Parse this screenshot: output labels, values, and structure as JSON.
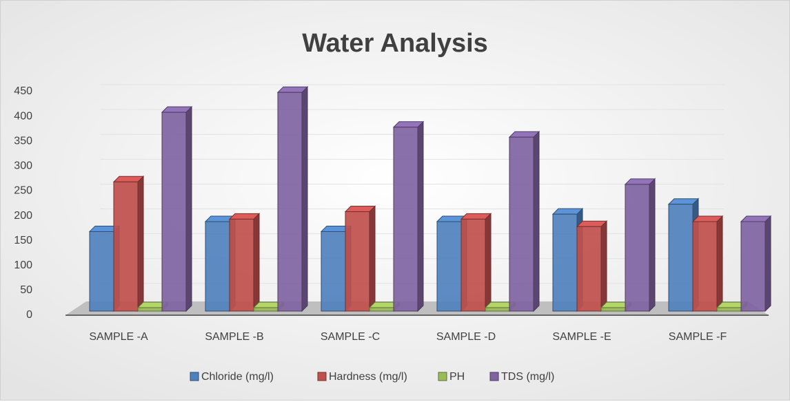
{
  "chart_data": {
    "type": "bar3d",
    "title": "Water Analysis",
    "categories": [
      "SAMPLE -A",
      "SAMPLE -B",
      "SAMPLE -C",
      "SAMPLE -D",
      "SAMPLE -E",
      "SAMPLE -F"
    ],
    "series": [
      {
        "name": "Chloride (mg/l)",
        "color": "#4f81bd",
        "values": [
          160,
          180,
          160,
          180,
          195,
          215
        ]
      },
      {
        "name": "Hardness (mg/l)",
        "color": "#c0504d",
        "values": [
          260,
          185,
          200,
          185,
          170,
          180
        ]
      },
      {
        "name": "PH",
        "color": "#9bbb59",
        "values": [
          7,
          7,
          7,
          7,
          7,
          7
        ]
      },
      {
        "name": "TDS (mg/l)",
        "color": "#8064a2",
        "values": [
          400,
          440,
          370,
          350,
          255,
          180
        ]
      }
    ],
    "ylim": [
      0,
      450
    ],
    "yticks": [
      0,
      50,
      100,
      150,
      200,
      250,
      300,
      350,
      400,
      450
    ],
    "grid": true,
    "legend": "bottom"
  }
}
